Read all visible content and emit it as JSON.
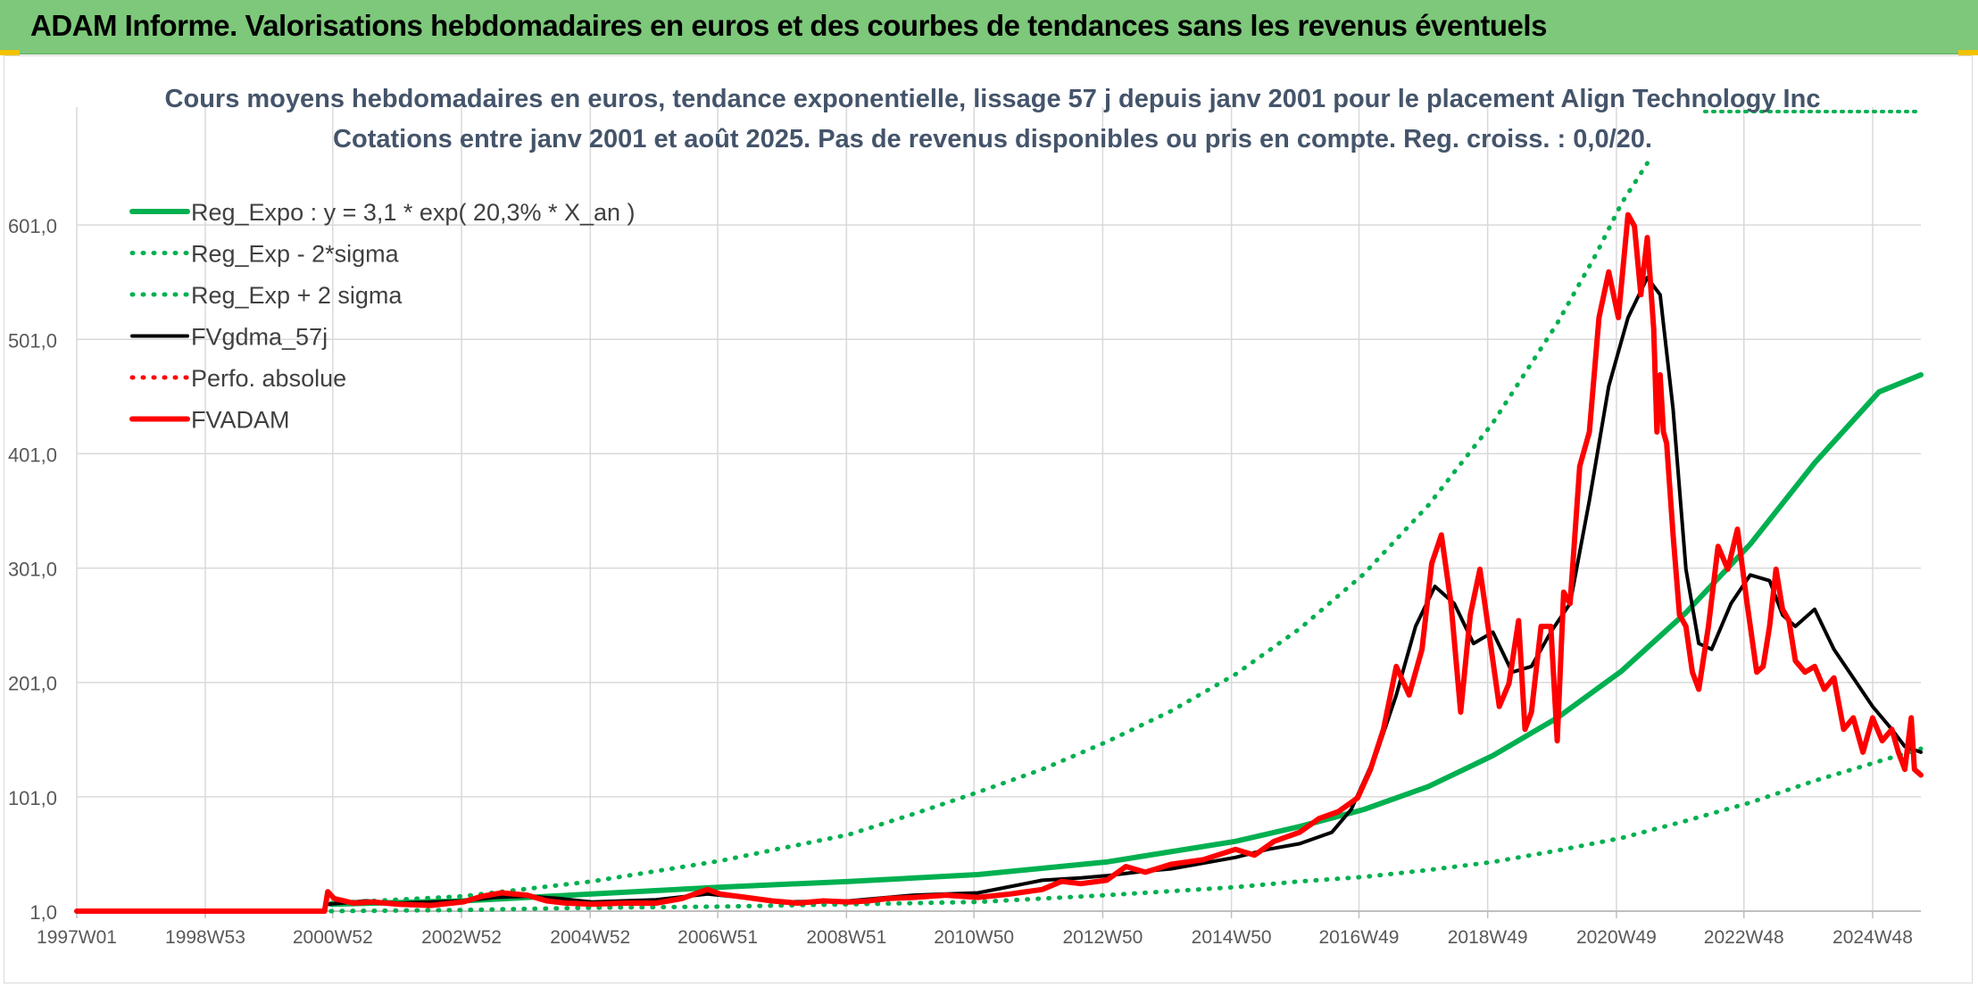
{
  "header": {
    "title": "ADAM Informe. Valorisations hebdomadaires en euros et des courbes de tendances sans les revenus éventuels"
  },
  "colors": {
    "banner": "#7dc87a",
    "green": "#00b050",
    "red": "#ff0000",
    "black": "#000000",
    "title_text": "#44546a",
    "gridline": "#d9d9d9"
  },
  "chart_data": {
    "type": "line",
    "title": "Cours moyens hebdomadaires en euros, tendance exponentielle, lissage 57 j depuis janv 2001 pour le placement Align Technology Inc",
    "subtitle": "Cotations entre janv 2001 et août 2025. Pas de revenus disponibles ou pris en compte. Reg. croiss. : 0,0/20.",
    "xlabel": "",
    "ylabel": "",
    "x_range": [
      1997.0,
      2025.65
    ],
    "ylim": [
      1,
      701
    ],
    "y_ticks": [
      "1,0",
      "101,0",
      "201,0",
      "301,0",
      "401,0",
      "501,0",
      "601,0"
    ],
    "x_ticks": [
      "1997W01",
      "1998W53",
      "2000W52",
      "2002W52",
      "2004W52",
      "2006W51",
      "2008W51",
      "2010W50",
      "2012W50",
      "2014W50",
      "2016W49",
      "2018W49",
      "2020W49",
      "2022W48",
      "2024W48"
    ],
    "grid": true,
    "legend_position": "top-left",
    "series": [
      {
        "name": "Reg_Expo : y = 3,1 * exp( 20,3% *  X_an )",
        "style": "solid",
        "color": "#00b050",
        "x": [
          2000.95,
          2003.0,
          2005.0,
          2007.0,
          2009.0,
          2011.0,
          2013.0,
          2015.0,
          2016.0,
          2017.0,
          2018.0,
          2019.0,
          2020.0,
          2021.0,
          2022.0,
          2023.0,
          2024.0,
          2025.0,
          2025.65
        ],
        "values": [
          7,
          10,
          16,
          22,
          27,
          33,
          44,
          62,
          75,
          90,
          110,
          137,
          170,
          211,
          262,
          322,
          393,
          455,
          470
        ]
      },
      {
        "name": "Reg_Exp - 2*sigma",
        "style": "dotted",
        "color": "#00b050",
        "x": [
          2000.95,
          2003.0,
          2005.0,
          2007.0,
          2009.0,
          2011.0,
          2013.0,
          2015.0,
          2016.0,
          2017.0,
          2018.0,
          2019.0,
          2020.0,
          2021.0,
          2022.0,
          2023.0,
          2024.0,
          2025.0,
          2025.65
        ],
        "values": [
          1,
          2,
          4,
          5,
          7,
          9,
          15,
          22,
          27,
          31,
          37,
          44,
          54,
          65,
          80,
          96,
          115,
          132,
          143
        ]
      },
      {
        "name": "Reg_Exp + 2 sigma",
        "style": "dotted",
        "color": "#00b050",
        "x": [
          2000.95,
          2003.0,
          2005.0,
          2007.0,
          2009.0,
          2010.0,
          2011.0,
          2012.0,
          2013.0,
          2014.0,
          2015.0,
          2016.0,
          2017.0,
          2018.0,
          2019.0,
          2020.0,
          2020.6,
          2021.0,
          2021.4
        ],
        "values": [
          8,
          14,
          27,
          45,
          68,
          86,
          105,
          125,
          149,
          176,
          208,
          248,
          296,
          356,
          428,
          515,
          575,
          620,
          655
        ]
      },
      {
        "name": "FVgdma_57j",
        "style": "solid",
        "color": "#000000",
        "x": [
          2000.9,
          2001.5,
          2002.0,
          2002.5,
          2003.0,
          2003.5,
          2004.0,
          2004.5,
          2005.0,
          2006.0,
          2006.8,
          2007.5,
          2008.0,
          2009.0,
          2010.0,
          2011.0,
          2012.0,
          2012.6,
          2013.0,
          2013.6,
          2014.0,
          2015.0,
          2015.5,
          2016.0,
          2016.5,
          2016.8,
          2017.2,
          2017.5,
          2017.8,
          2018.1,
          2018.4,
          2018.7,
          2019.0,
          2019.3,
          2019.6,
          2019.9,
          2020.2,
          2020.5,
          2020.8,
          2021.1,
          2021.4,
          2021.6,
          2021.8,
          2022.0,
          2022.2,
          2022.4,
          2022.7,
          2023.0,
          2023.3,
          2023.5,
          2023.7,
          2024.0,
          2024.3,
          2024.6,
          2024.9,
          2025.2,
          2025.4,
          2025.65
        ],
        "values": [
          7,
          10,
          8,
          9,
          10,
          13,
          14,
          12,
          9,
          11,
          16,
          12,
          9,
          10,
          15,
          17,
          28,
          30,
          32,
          36,
          38,
          48,
          55,
          60,
          70,
          90,
          140,
          190,
          250,
          285,
          270,
          235,
          245,
          210,
          215,
          245,
          270,
          360,
          460,
          520,
          555,
          540,
          440,
          300,
          235,
          230,
          270,
          295,
          290,
          260,
          250,
          265,
          230,
          205,
          180,
          160,
          145,
          140
        ]
      },
      {
        "name": "Perfo. absolue",
        "style": "dotted",
        "color": "#ff0000",
        "x": [],
        "values": []
      },
      {
        "name": "FVADAM",
        "style": "solid",
        "color": "#ff0000",
        "x": [
          1997.0,
          2000.85,
          2000.9,
          2001.0,
          2001.3,
          2001.6,
          2002.0,
          2002.5,
          2003.0,
          2003.3,
          2003.6,
          2004.0,
          2004.3,
          2004.6,
          2005.0,
          2005.5,
          2006.0,
          2006.4,
          2006.8,
          2007.0,
          2007.4,
          2007.8,
          2008.2,
          2008.6,
          2009.0,
          2009.3,
          2009.6,
          2010.0,
          2010.5,
          2011.0,
          2011.5,
          2012.0,
          2012.3,
          2012.6,
          2013.0,
          2013.3,
          2013.6,
          2014.0,
          2014.5,
          2015.0,
          2015.3,
          2015.6,
          2016.0,
          2016.3,
          2016.6,
          2016.9,
          2017.1,
          2017.3,
          2017.5,
          2017.7,
          2017.9,
          2018.05,
          2018.2,
          2018.35,
          2018.5,
          2018.65,
          2018.8,
          2018.95,
          2019.1,
          2019.25,
          2019.4,
          2019.5,
          2019.6,
          2019.75,
          2019.9,
          2020.0,
          2020.1,
          2020.2,
          2020.35,
          2020.5,
          2020.65,
          2020.8,
          2020.95,
          2021.1,
          2021.2,
          2021.3,
          2021.4,
          2021.5,
          2021.55,
          2021.6,
          2021.65,
          2021.7,
          2021.8,
          2021.9,
          2022.0,
          2022.1,
          2022.2,
          2022.35,
          2022.5,
          2022.65,
          2022.8,
          2022.95,
          2023.1,
          2023.2,
          2023.3,
          2023.4,
          2023.5,
          2023.6,
          2023.7,
          2023.85,
          2024.0,
          2024.15,
          2024.3,
          2024.45,
          2024.6,
          2024.75,
          2024.9,
          2025.05,
          2025.2,
          2025.3,
          2025.4,
          2025.5,
          2025.55,
          2025.65
        ],
        "values": [
          1,
          1,
          18,
          12,
          8,
          9,
          7,
          6,
          9,
          14,
          17,
          15,
          10,
          8,
          7,
          8,
          8,
          12,
          20,
          16,
          13,
          10,
          8,
          10,
          9,
          10,
          12,
          13,
          15,
          13,
          16,
          20,
          27,
          25,
          28,
          40,
          35,
          42,
          46,
          55,
          50,
          62,
          70,
          82,
          88,
          100,
          125,
          160,
          215,
          190,
          230,
          305,
          330,
          270,
          175,
          260,
          300,
          240,
          180,
          200,
          255,
          160,
          175,
          250,
          250,
          150,
          280,
          270,
          390,
          420,
          520,
          560,
          520,
          610,
          600,
          540,
          590,
          510,
          420,
          470,
          420,
          410,
          330,
          260,
          250,
          210,
          195,
          250,
          320,
          300,
          335,
          270,
          210,
          215,
          250,
          300,
          265,
          255,
          220,
          210,
          215,
          195,
          205,
          160,
          170,
          140,
          170,
          150,
          160,
          140,
          125,
          170,
          125,
          120
        ]
      }
    ]
  }
}
